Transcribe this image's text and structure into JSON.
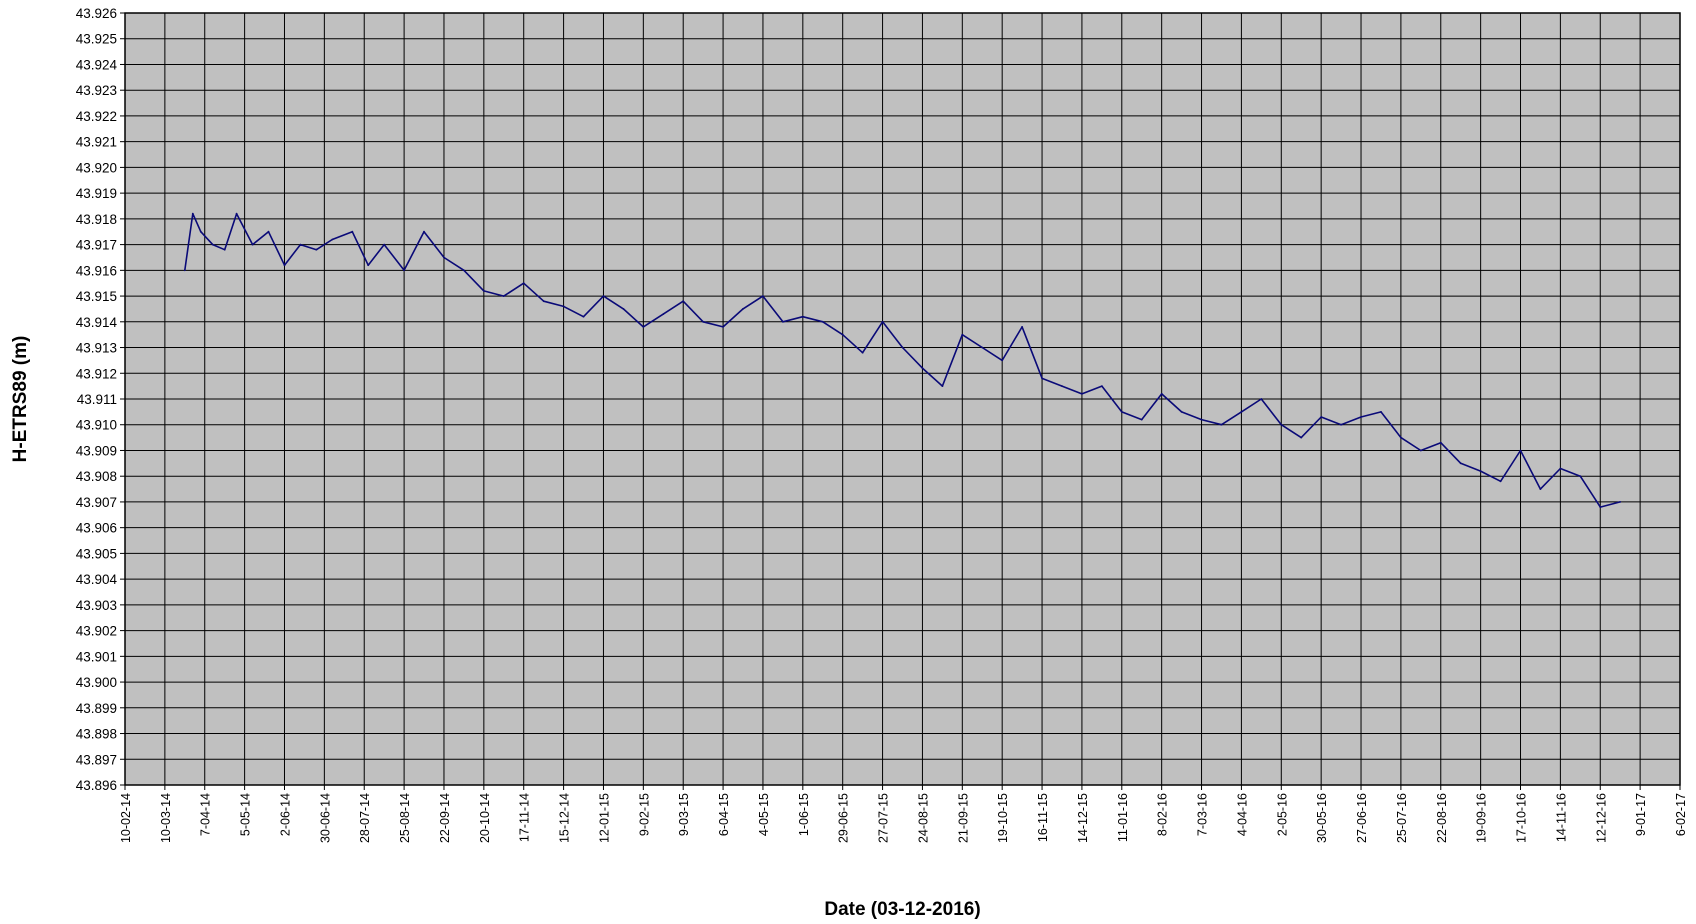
{
  "chart_data": {
    "type": "line",
    "title": "",
    "xlabel": "Date (03-12-2016)",
    "ylabel": "H-ETRS89  (m)",
    "ylim": [
      43.896,
      43.926
    ],
    "y_ticks": [
      "43.896",
      "43.897",
      "43.898",
      "43.899",
      "43.900",
      "43.901",
      "43.902",
      "43.903",
      "43.904",
      "43.905",
      "43.906",
      "43.907",
      "43.908",
      "43.909",
      "43.910",
      "43.911",
      "43.912",
      "43.913",
      "43.914",
      "43.915",
      "43.916",
      "43.917",
      "43.918",
      "43.919",
      "43.920",
      "43.921",
      "43.922",
      "43.923",
      "43.924",
      "43.925",
      "43.926"
    ],
    "x_ticks": [
      "10-02-14",
      "10-03-14",
      "7-04-14",
      "5-05-14",
      "2-06-14",
      "30-06-14",
      "28-07-14",
      "25-08-14",
      "22-09-14",
      "20-10-14",
      "17-11-14",
      "15-12-14",
      "12-01-15",
      "9-02-15",
      "9-03-15",
      "6-04-15",
      "4-05-15",
      "1-06-15",
      "29-06-15",
      "27-07-15",
      "24-08-15",
      "21-09-15",
      "19-10-15",
      "16-11-15",
      "14-12-15",
      "11-01-16",
      "8-02-16",
      "7-03-16",
      "4-04-16",
      "2-05-16",
      "30-05-16",
      "27-06-16",
      "25-07-16",
      "22-08-16",
      "19-09-16",
      "17-10-16",
      "14-11-16",
      "12-12-16",
      "9-01-17",
      "6-02-17"
    ],
    "grid": true,
    "plot_background": "#c0c0c0",
    "grid_color": "#000000",
    "series": [
      {
        "color": "#0a0a78",
        "x": [
          1.5,
          1.7,
          1.9,
          2.2,
          2.5,
          2.8,
          3.2,
          3.6,
          4.0,
          4.4,
          4.8,
          5.2,
          5.7,
          6.1,
          6.5,
          7.0,
          7.5,
          8.0,
          8.5,
          9.0,
          9.5,
          10.0,
          10.5,
          11.0,
          11.5,
          12.0,
          12.5,
          13.0,
          13.5,
          14.0,
          14.5,
          15.0,
          15.5,
          16.0,
          16.5,
          17.0,
          17.5,
          18.0,
          18.5,
          19.0,
          19.5,
          20.0,
          20.5,
          21.0,
          21.5,
          22.0,
          22.5,
          23.0,
          23.5,
          24.0,
          24.5,
          25.0,
          25.5,
          26.0,
          26.5,
          27.0,
          27.5,
          28.0,
          28.5,
          29.0,
          29.5,
          30.0,
          30.5,
          31.0,
          31.5,
          32.0,
          32.5,
          33.0,
          33.5,
          34.0,
          34.5,
          35.0,
          35.5,
          36.0,
          36.5,
          37.0,
          37.5
        ],
        "y": [
          43.916,
          43.9182,
          43.9175,
          43.917,
          43.9168,
          43.9182,
          43.917,
          43.9175,
          43.9162,
          43.917,
          43.9168,
          43.9172,
          43.9175,
          43.9162,
          43.917,
          43.916,
          43.9175,
          43.9165,
          43.916,
          43.9152,
          43.915,
          43.9155,
          43.9148,
          43.9146,
          43.9142,
          43.915,
          43.9145,
          43.9138,
          43.9143,
          43.9148,
          43.914,
          43.9138,
          43.9145,
          43.915,
          43.914,
          43.9142,
          43.914,
          43.9135,
          43.9128,
          43.914,
          43.913,
          43.9122,
          43.9115,
          43.9135,
          43.913,
          43.9125,
          43.9138,
          43.9118,
          43.9115,
          43.9112,
          43.9115,
          43.9105,
          43.9102,
          43.9112,
          43.9105,
          43.9102,
          43.91,
          43.9105,
          43.911,
          43.91,
          43.9095,
          43.9103,
          43.91,
          43.9103,
          43.9105,
          43.9095,
          43.909,
          43.9093,
          43.9085,
          43.9082,
          43.9078,
          43.909,
          43.9075,
          43.9083,
          43.908,
          43.9068,
          43.907
        ]
      }
    ]
  }
}
